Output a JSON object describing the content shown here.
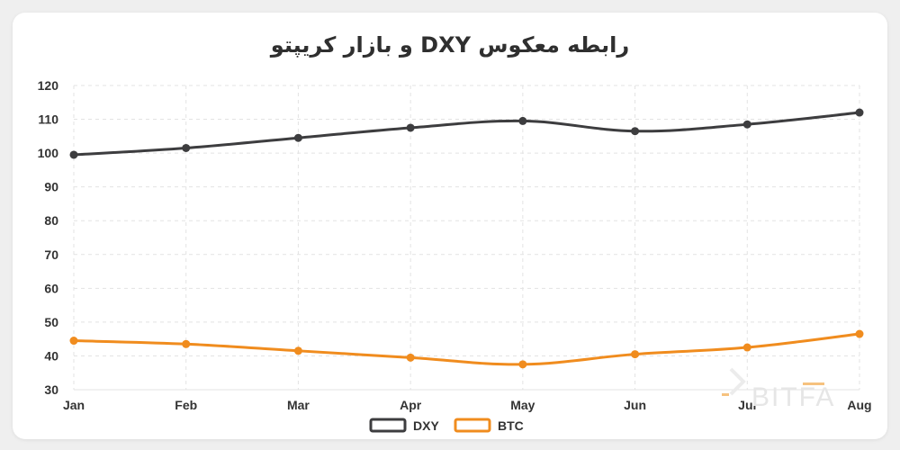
{
  "chart_data": {
    "type": "line",
    "title": "رابطه معکوس DXY و بازار کریپتو",
    "categories": [
      "Jan",
      "Feb",
      "Mar",
      "Apr",
      "May",
      "Jun",
      "Jul",
      "Aug"
    ],
    "ylim": [
      30,
      120
    ],
    "yticks": [
      30,
      40,
      50,
      60,
      70,
      80,
      90,
      100,
      110,
      120
    ],
    "grid": true,
    "legend_position": "bottom",
    "series": [
      {
        "name": "DXY",
        "values": [
          99.5,
          101.5,
          104.5,
          107.5,
          109.5,
          106.5,
          108.5,
          112
        ],
        "color": "#3d3d3f"
      },
      {
        "name": "BTC",
        "values": [
          44.5,
          43.5,
          41.5,
          39.5,
          37.5,
          40.5,
          42.5,
          46.5
        ],
        "color": "#f08c1e"
      }
    ]
  },
  "watermark": {
    "text": "BITFA"
  }
}
